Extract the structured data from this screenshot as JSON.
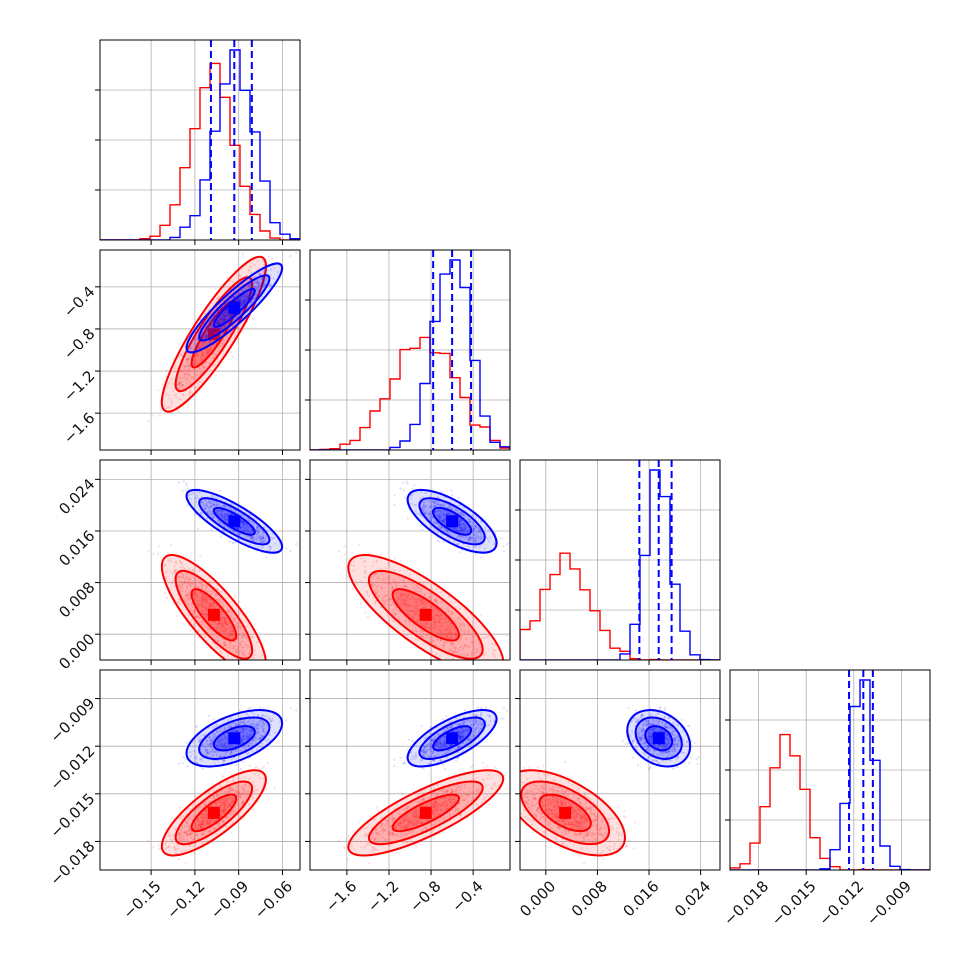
{
  "chart_data": {
    "type": "corner",
    "parameters": [
      {
        "range": [
          -0.185,
          -0.048
        ],
        "ticks": [
          -0.15,
          -0.12,
          -0.09,
          -0.06
        ],
        "tick_labels": [
          "−0.15",
          "−0.12",
          "−0.09",
          "−0.06"
        ]
      },
      {
        "range": [
          -1.95,
          -0.05
        ],
        "ticks": [
          -1.6,
          -1.2,
          -0.8,
          -0.4
        ],
        "tick_labels": [
          "−1.6",
          "−1.2",
          "−0.8",
          "−0.4"
        ]
      },
      {
        "range": [
          -0.004,
          0.027
        ],
        "ticks": [
          0.0,
          0.008,
          0.016,
          0.024
        ],
        "tick_labels": [
          "0.000",
          "0.008",
          "0.016",
          "0.024"
        ]
      },
      {
        "range": [
          -0.0198,
          -0.0072
        ],
        "ticks": [
          -0.018,
          -0.015,
          -0.012,
          -0.009
        ],
        "tick_labels": [
          "−0.018",
          "−0.015",
          "−0.012",
          "−0.009"
        ]
      }
    ],
    "series": [
      {
        "color": "#ff0000",
        "means": [
          -0.107,
          -0.85,
          0.003,
          -0.0162
        ],
        "sds": [
          0.015,
          0.3,
          0.0038,
          0.0011
        ]
      },
      {
        "color": "#0000ff",
        "means": [
          -0.093,
          -0.6,
          0.0175,
          -0.0115
        ],
        "sds": [
          0.013,
          0.17,
          0.0019,
          0.0007
        ]
      }
    ],
    "quantiles": [
      [
        -0.109,
        -0.093,
        -0.081
      ],
      [
        -0.78,
        -0.6,
        -0.42
      ],
      [
        0.0145,
        0.0175,
        0.0195
      ],
      [
        -0.0123,
        -0.0114,
        -0.0108
      ]
    ],
    "quantile_color": "#0000ff",
    "grid": true
  }
}
